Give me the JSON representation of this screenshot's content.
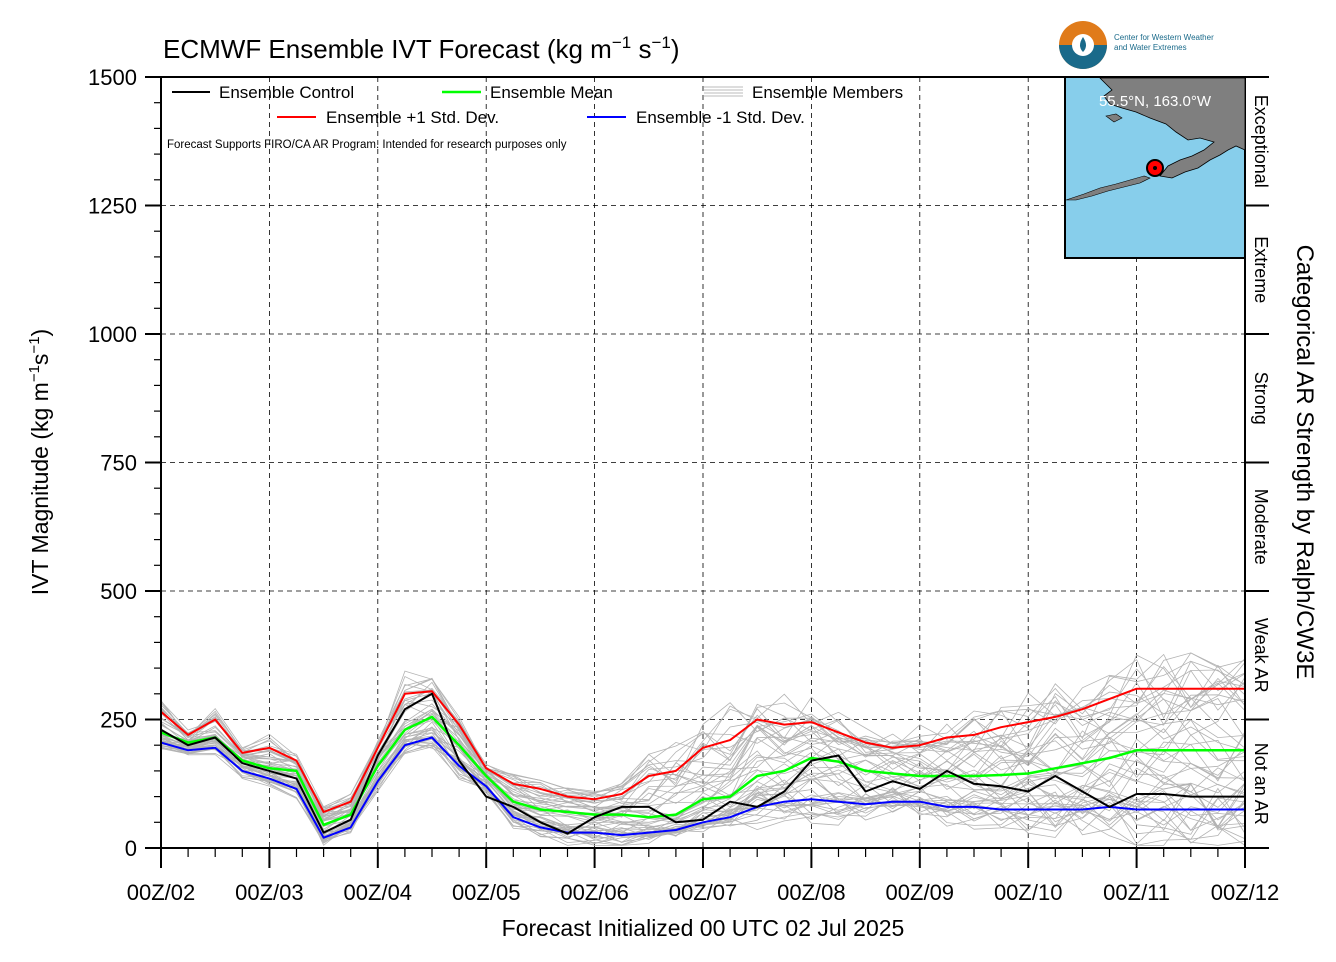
{
  "chart_data": {
    "type": "line",
    "title": "ECMWF Ensemble IVT Forecast (kg m",
    "title_unit_sup1": "−1",
    "title_unit_s": " s",
    "title_unit_sup2": "−1",
    "title_unit_close": ")",
    "ylabel": "IVT Magnitude (kg m",
    "ylabel_sup1": "−1",
    "ylabel_s": "s",
    "ylabel_sup2": "−1",
    "ylabel_close": ")",
    "xlabel": "Forecast Initialized 00 UTC 02 Jul 2025",
    "right_label": "Categorical AR Strength by Ralph/CW3E",
    "note": "Forecast Supports FIRO/CA AR Program. Intended for research purposes only",
    "ylim": [
      0,
      1500
    ],
    "xlim_days": [
      0,
      10
    ],
    "y_ticks": [
      "0",
      "250",
      "500",
      "750",
      "1000",
      "1250",
      "1500"
    ],
    "x_ticks": [
      "00Z/02",
      "00Z/03",
      "00Z/04",
      "00Z/05",
      "00Z/06",
      "00Z/07",
      "00Z/08",
      "00Z/09",
      "00Z/10",
      "00Z/11",
      "00Z/12"
    ],
    "grid": "dashed",
    "legend_position": "top-left",
    "legend": {
      "control": "Ensemble Control",
      "mean": "Ensemble Mean",
      "members": "Ensemble Members",
      "plus_std": "Ensemble +1 Std. Dev.",
      "minus_std": "Ensemble -1 Std. Dev."
    },
    "categories": [
      {
        "label": "Not an AR",
        "range": [
          0,
          250
        ]
      },
      {
        "label": "Weak AR",
        "range": [
          250,
          500
        ]
      },
      {
        "label": "Moderate",
        "range": [
          500,
          750
        ]
      },
      {
        "label": "Strong",
        "range": [
          750,
          1000
        ]
      },
      {
        "label": "Extreme",
        "range": [
          1000,
          1250
        ]
      },
      {
        "label": "Exceptional",
        "range": [
          1250,
          1500
        ]
      }
    ],
    "inset_map": {
      "location_label": "55.5°N, 163.0°W",
      "marker_lat": 55.5,
      "marker_lon": -163.0
    },
    "series": [
      {
        "name": "Ensemble Control",
        "color": "#000000",
        "x": [
          0,
          0.25,
          0.5,
          0.75,
          1,
          1.25,
          1.5,
          1.75,
          2,
          2.25,
          2.5,
          2.75,
          3,
          3.25,
          3.5,
          3.75,
          4,
          4.25,
          4.5,
          4.75,
          5,
          5.25,
          5.5,
          5.75,
          6,
          6.25,
          6.5,
          6.75,
          7,
          7.25,
          7.5,
          7.75,
          8,
          8.25,
          8.5,
          8.75,
          9,
          9.25,
          9.5,
          9.75,
          10
        ],
        "values": [
          230,
          200,
          215,
          165,
          150,
          135,
          30,
          55,
          180,
          270,
          300,
          170,
          100,
          80,
          50,
          28,
          60,
          80,
          80,
          50,
          55,
          90,
          80,
          110,
          170,
          180,
          110,
          130,
          115,
          150,
          125,
          120,
          110,
          140,
          110,
          80,
          105,
          105,
          100,
          100,
          100
        ]
      },
      {
        "name": "Ensemble Mean",
        "color": "#00ff00",
        "x": [
          0,
          0.25,
          0.5,
          0.75,
          1,
          1.25,
          1.5,
          1.75,
          2,
          2.25,
          2.5,
          2.75,
          3,
          3.25,
          3.5,
          3.75,
          4,
          4.25,
          4.5,
          4.75,
          5,
          5.25,
          5.5,
          5.75,
          6,
          6.25,
          6.5,
          6.75,
          7,
          7.25,
          7.5,
          7.75,
          8,
          8.25,
          8.5,
          8.75,
          9,
          9.25,
          9.5,
          9.75,
          10
        ],
        "values": [
          225,
          205,
          215,
          170,
          155,
          150,
          45,
          65,
          160,
          230,
          255,
          200,
          140,
          90,
          75,
          70,
          65,
          65,
          60,
          65,
          95,
          100,
          140,
          150,
          175,
          168,
          150,
          145,
          140,
          140,
          140,
          142,
          145,
          155,
          165,
          175,
          190,
          190,
          190,
          190,
          190
        ]
      },
      {
        "name": "Ensemble +1 Std. Dev.",
        "color": "#ff0000",
        "x": [
          0,
          0.25,
          0.5,
          0.75,
          1,
          1.25,
          1.5,
          1.75,
          2,
          2.25,
          2.5,
          2.75,
          3,
          3.25,
          3.5,
          3.75,
          4,
          4.25,
          4.5,
          4.75,
          5,
          5.25,
          5.5,
          5.75,
          6,
          6.25,
          6.5,
          6.75,
          7,
          7.25,
          7.5,
          7.75,
          8,
          8.25,
          8.5,
          8.75,
          9,
          9.25,
          9.5,
          9.75,
          10
        ],
        "values": [
          265,
          220,
          250,
          185,
          195,
          170,
          70,
          90,
          195,
          300,
          305,
          240,
          155,
          125,
          115,
          100,
          95,
          105,
          140,
          150,
          195,
          210,
          250,
          240,
          245,
          225,
          205,
          195,
          200,
          215,
          220,
          235,
          245,
          255,
          270,
          290,
          310,
          310,
          310,
          310,
          310
        ]
      },
      {
        "name": "Ensemble -1 Std. Dev.",
        "color": "#0000ff",
        "x": [
          0,
          0.25,
          0.5,
          0.75,
          1,
          1.25,
          1.5,
          1.75,
          2,
          2.25,
          2.5,
          2.75,
          3,
          3.25,
          3.5,
          3.75,
          4,
          4.25,
          4.5,
          4.75,
          5,
          5.25,
          5.5,
          5.75,
          6,
          6.25,
          6.5,
          6.75,
          7,
          7.25,
          7.5,
          7.75,
          8,
          8.25,
          8.5,
          8.75,
          9,
          9.25,
          9.5,
          9.75,
          10
        ],
        "values": [
          205,
          190,
          195,
          150,
          135,
          115,
          20,
          40,
          130,
          200,
          215,
          160,
          120,
          60,
          40,
          30,
          30,
          25,
          30,
          35,
          50,
          60,
          80,
          90,
          95,
          90,
          85,
          90,
          90,
          80,
          80,
          75,
          75,
          75,
          75,
          80,
          75,
          75,
          75,
          75,
          75
        ]
      }
    ]
  }
}
